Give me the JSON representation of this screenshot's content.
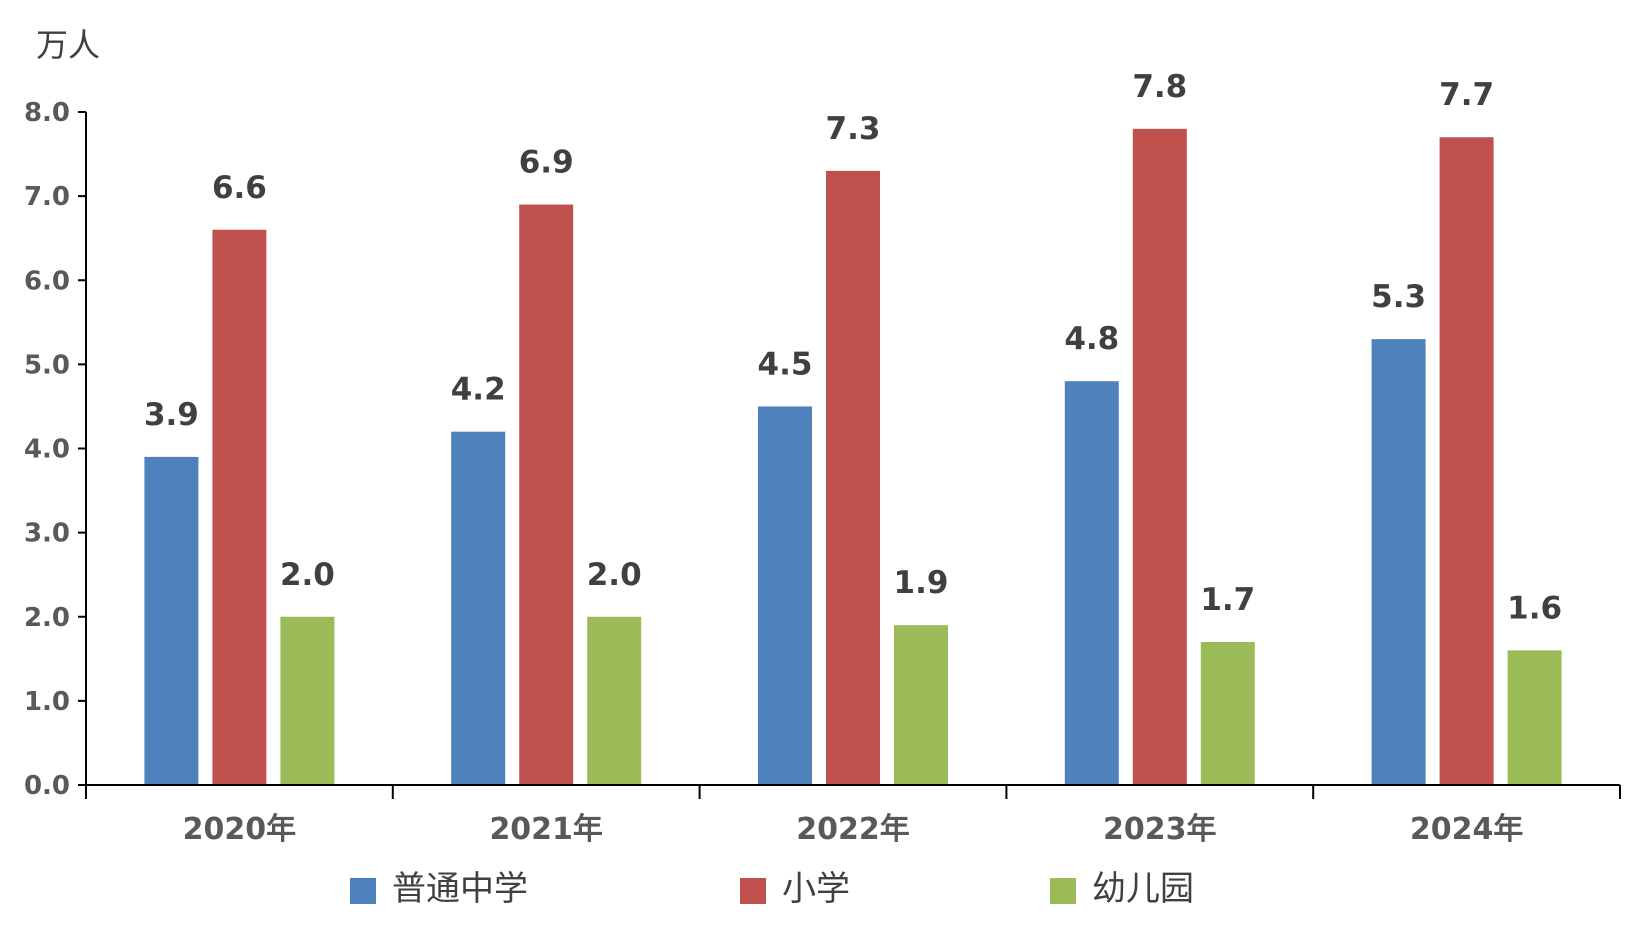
{
  "chart_data": {
    "type": "bar",
    "unit_label": "万人",
    "categories": [
      "2020年",
      "2021年",
      "2022年",
      "2023年",
      "2024年"
    ],
    "series": [
      {
        "name": "普通中学",
        "color": "#4F81BD",
        "values": [
          3.9,
          4.2,
          4.5,
          4.8,
          5.3
        ]
      },
      {
        "name": "小学",
        "color": "#C0504D",
        "values": [
          6.6,
          6.9,
          7.3,
          7.8,
          7.7
        ]
      },
      {
        "name": "幼儿园",
        "color": "#9BBB59",
        "values": [
          2.0,
          2.0,
          1.9,
          1.7,
          1.6
        ]
      }
    ],
    "ylim": [
      0,
      8
    ],
    "yticks": [
      "0.0",
      "1.0",
      "2.0",
      "3.0",
      "4.0",
      "5.0",
      "6.0",
      "7.0",
      "8.0"
    ],
    "grid": false,
    "legend_position": "bottom"
  }
}
